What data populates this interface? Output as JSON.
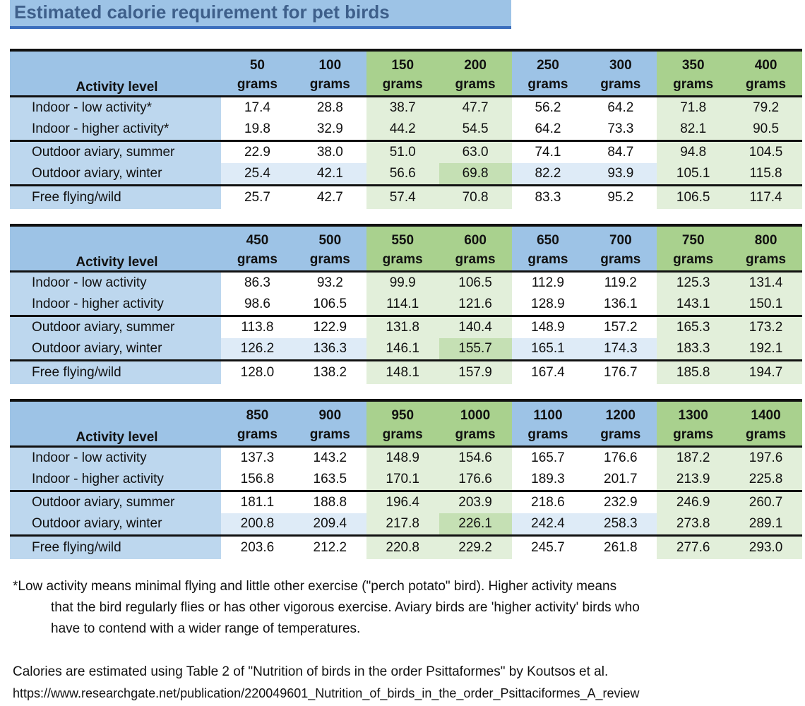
{
  "title": "Estimated calorie requirement for pet birds",
  "row_header": "Activity level",
  "unit": "grams",
  "tables": [
    {
      "weights": [
        "50",
        "100",
        "150",
        "200",
        "250",
        "300",
        "350",
        "400"
      ],
      "rows": [
        {
          "label": "Indoor - low activity*",
          "values": [
            "17.4",
            "28.8",
            "38.7",
            "47.7",
            "56.2",
            "64.2",
            "71.8",
            "79.2"
          ]
        },
        {
          "label": "Indoor - higher activity*",
          "values": [
            "19.8",
            "32.9",
            "44.2",
            "54.5",
            "64.2",
            "73.3",
            "82.1",
            "90.5"
          ]
        },
        {
          "label": "Outdoor aviary, summer",
          "values": [
            "22.9",
            "38.0",
            "51.0",
            "63.0",
            "74.1",
            "84.7",
            "94.8",
            "104.5"
          ]
        },
        {
          "label": "Outdoor aviary, winter",
          "values": [
            "25.4",
            "42.1",
            "56.6",
            "69.8",
            "82.2",
            "93.9",
            "105.1",
            "115.8"
          ]
        },
        {
          "label": "Free flying/wild",
          "values": [
            "25.7",
            "42.7",
            "57.4",
            "70.8",
            "83.3",
            "95.2",
            "106.5",
            "117.4"
          ]
        }
      ]
    },
    {
      "weights": [
        "450",
        "500",
        "550",
        "600",
        "650",
        "700",
        "750",
        "800"
      ],
      "rows": [
        {
          "label": "Indoor - low activity",
          "values": [
            "86.3",
            "93.2",
            "99.9",
            "106.5",
            "112.9",
            "119.2",
            "125.3",
            "131.4"
          ]
        },
        {
          "label": "Indoor - higher activity",
          "values": [
            "98.6",
            "106.5",
            "114.1",
            "121.6",
            "128.9",
            "136.1",
            "143.1",
            "150.1"
          ]
        },
        {
          "label": "Outdoor aviary, summer",
          "values": [
            "113.8",
            "122.9",
            "131.8",
            "140.4",
            "148.9",
            "157.2",
            "165.3",
            "173.2"
          ]
        },
        {
          "label": "Outdoor aviary, winter",
          "values": [
            "126.2",
            "136.3",
            "146.1",
            "155.7",
            "165.1",
            "174.3",
            "183.3",
            "192.1"
          ]
        },
        {
          "label": "Free flying/wild",
          "values": [
            "128.0",
            "138.2",
            "148.1",
            "157.9",
            "167.4",
            "176.7",
            "185.8",
            "194.7"
          ]
        }
      ]
    },
    {
      "weights": [
        "850",
        "900",
        "950",
        "1000",
        "1100",
        "1200",
        "1300",
        "1400"
      ],
      "rows": [
        {
          "label": "Indoor - low activity",
          "values": [
            "137.3",
            "143.2",
            "148.9",
            "154.6",
            "165.7",
            "176.6",
            "187.2",
            "197.6"
          ]
        },
        {
          "label": "Indoor - higher activity",
          "values": [
            "156.8",
            "163.5",
            "170.1",
            "176.6",
            "189.3",
            "201.7",
            "213.9",
            "225.8"
          ]
        },
        {
          "label": "Outdoor aviary, summer",
          "values": [
            "181.1",
            "188.8",
            "196.4",
            "203.9",
            "218.6",
            "232.9",
            "246.9",
            "260.7"
          ]
        },
        {
          "label": "Outdoor aviary, winter",
          "values": [
            "200.8",
            "209.4",
            "217.8",
            "226.1",
            "242.4",
            "258.3",
            "273.8",
            "289.1"
          ]
        },
        {
          "label": "Free flying/wild",
          "values": [
            "203.6",
            "212.2",
            "220.8",
            "229.2",
            "245.7",
            "261.8",
            "277.6",
            "293.0"
          ]
        }
      ]
    }
  ],
  "footnote": {
    "line1": "*Low activity means minimal flying and little other  exercise (\"perch potato\" bird). Higher activity means",
    "line2": "that the bird regularly flies or has other vigorous exercise.  Aviary birds are 'higher activity' birds who",
    "line3": "have to contend with a wider range of temperatures."
  },
  "source": {
    "text": "Calories are estimated using  Table 2 of \"Nutrition of birds in the order Psittaformes\" by Koutsos et al.",
    "url": "https://www.researchgate.net/publication/220049601_Nutrition_of_birds_in_the_order_Psittaciformes_A_review"
  },
  "colors": {
    "header_blue": "#9dc3e6",
    "header_green": "#a9d18e",
    "label_blue": "#bdd7ee",
    "pale_blue": "#deebf7",
    "pale_green": "#e2efda",
    "mid_green": "#c5e0b4",
    "title_text": "#3e5f8a",
    "title_underline": "#3c6ebd"
  }
}
